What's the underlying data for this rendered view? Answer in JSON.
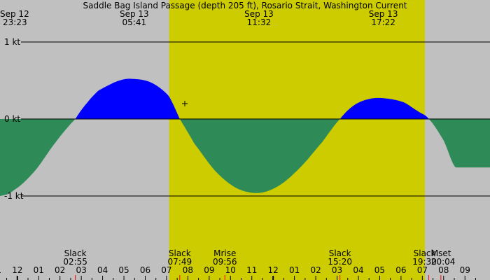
{
  "chart_data": {
    "type": "area",
    "title": "Saddle Bag Island Passage (depth 205 ft), Rosario Strait, Washington Current",
    "unit": "kt",
    "ylim": [
      -1.0,
      1.0
    ],
    "y_ticks": [
      {
        "value": 1,
        "label": "1 kt"
      },
      {
        "value": 0,
        "label": "0 kt"
      },
      {
        "value": -1,
        "label": "-1 kt"
      }
    ],
    "x_start_hour": 23.383,
    "x_end_hour": 70.15,
    "hour_ticks": [
      "11",
      "12",
      "01",
      "02",
      "03",
      "04",
      "05",
      "06",
      "07",
      "08",
      "09",
      "10",
      "11",
      "12",
      "01",
      "02",
      "03",
      "04",
      "05",
      "06",
      "07",
      "08",
      "09"
    ],
    "hour_tick_start": 23,
    "top_labels": [
      {
        "date": "Sep 12",
        "time": "23:23",
        "hour": 23.383,
        "anchor": "start"
      },
      {
        "date": "Sep 13",
        "time": "05:41",
        "hour": 29.683,
        "anchor": "middle"
      },
      {
        "date": "Sep 13",
        "time": "11:32",
        "hour": 35.533,
        "anchor": "middle"
      },
      {
        "date": "Sep 13",
        "time": "17:22",
        "hour": 41.367,
        "anchor": "middle"
      }
    ],
    "events": [
      {
        "label": "Slack",
        "time": "02:55",
        "hour": 26.917
      },
      {
        "label": "Slack",
        "time": "07:49",
        "hour": 31.817
      },
      {
        "label": "Mrise",
        "time": "09:56",
        "hour": 33.933
      },
      {
        "label": "Slack",
        "time": "15:20",
        "hour": 39.333
      },
      {
        "label": "Slack",
        "time": "19:30",
        "hour": 43.5
      },
      {
        "label": "Mset",
        "time": "20:04",
        "hour": 44.067
      }
    ],
    "daylight": {
      "start_hour": 31.317,
      "end_hour": 43.317
    },
    "series": {
      "hours": [
        23.383,
        24.0,
        25.0,
        26.0,
        26.917,
        27.5,
        28.0,
        29.0,
        29.683,
        30.5,
        31.3,
        31.817,
        32.5,
        33.5,
        34.5,
        35.533,
        36.5,
        37.5,
        38.5,
        39.333,
        40.0,
        40.7,
        41.367,
        42.3,
        43.0,
        43.5,
        44.2,
        44.75
      ],
      "values": [
        -1.0,
        -0.93,
        -0.68,
        -0.3,
        0.0,
        0.22,
        0.37,
        0.5,
        0.52,
        0.47,
        0.3,
        0.0,
        -0.32,
        -0.68,
        -0.9,
        -0.96,
        -0.86,
        -0.62,
        -0.3,
        0.0,
        0.18,
        0.26,
        0.27,
        0.22,
        0.1,
        0.0,
        -0.28,
        -0.63
      ]
    },
    "colors": {
      "background": "#c0c0c0",
      "daylight": "#cccc00",
      "flood": "#0000ff",
      "ebb": "#2e8b57",
      "gridline": "#000000",
      "event_tick": "#ff0000"
    }
  }
}
